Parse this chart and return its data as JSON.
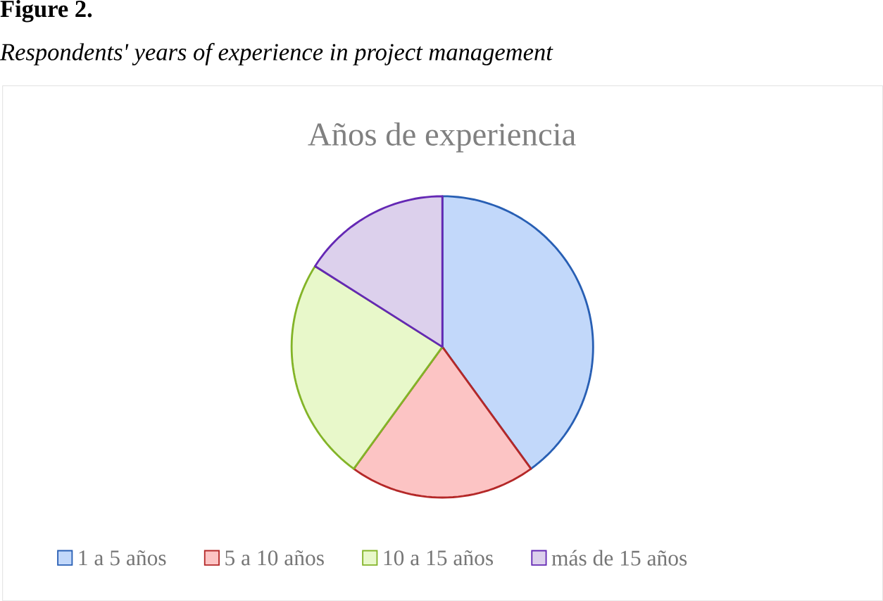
{
  "chart_data": {
    "type": "pie",
    "title": "Años de experiencia",
    "annotations": [
      "Figure 2.",
      "*Respondents' years of experience in project management*"
    ],
    "categories": [
      "1 a 5 años",
      "5 a 10 años",
      "10 a 15 años",
      "más de 15 años"
    ],
    "values": [
      40,
      20,
      24,
      16
    ],
    "colors": [
      "#c2d8fa",
      "#fcc4c4",
      "#e8f8ca",
      "#dcd0ec"
    ],
    "legend": "bottom"
  }
}
